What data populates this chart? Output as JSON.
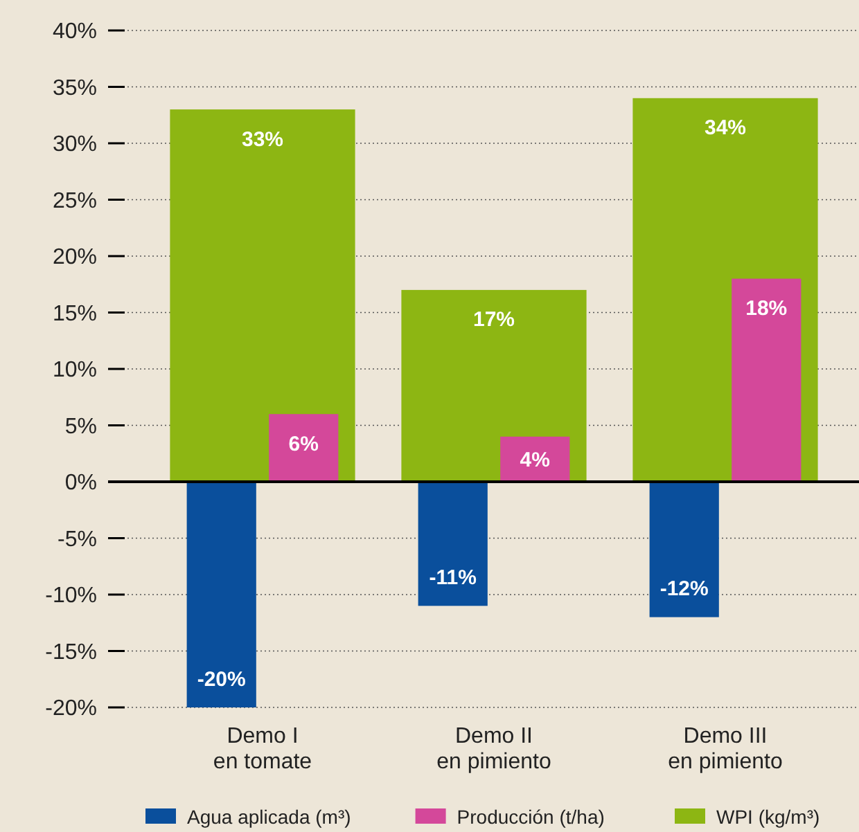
{
  "chart_data": {
    "type": "bar",
    "categories": [
      "Demo I\nen tomate",
      "Demo II\nen pimiento",
      "Demo III\nen pimiento"
    ],
    "series": [
      {
        "name": "Agua aplicada (m³)",
        "color": "#0a4f9c",
        "values": [
          -20,
          -11,
          -12
        ],
        "value_labels": [
          "-20%",
          "-11%",
          "-12%"
        ]
      },
      {
        "name": "Producción (t/ha)",
        "color": "#d4489a",
        "values": [
          6,
          4,
          18
        ],
        "value_labels": [
          "6%",
          "4%",
          "18%"
        ]
      },
      {
        "name": "WPI (kg/m³)",
        "color": "#8db613",
        "values": [
          33,
          17,
          34
        ],
        "value_labels": [
          "33%",
          "17%",
          "34%"
        ]
      }
    ],
    "ylim": [
      -20,
      40
    ],
    "yticks": [
      {
        "value": -20,
        "label": "-20%"
      },
      {
        "value": -15,
        "label": "-15%"
      },
      {
        "value": -10,
        "label": "-10%"
      },
      {
        "value": -5,
        "label": "-5%"
      },
      {
        "value": 0,
        "label": "0%"
      },
      {
        "value": 5,
        "label": "5%"
      },
      {
        "value": 10,
        "label": "10%"
      },
      {
        "value": 15,
        "label": "15%"
      },
      {
        "value": 20,
        "label": "20%"
      },
      {
        "value": 25,
        "label": "25%"
      },
      {
        "value": 30,
        "label": "30%"
      },
      {
        "value": 35,
        "label": "35%"
      },
      {
        "value": 40,
        "label": "40%"
      }
    ],
    "grid": "y",
    "legend": "bottom"
  }
}
